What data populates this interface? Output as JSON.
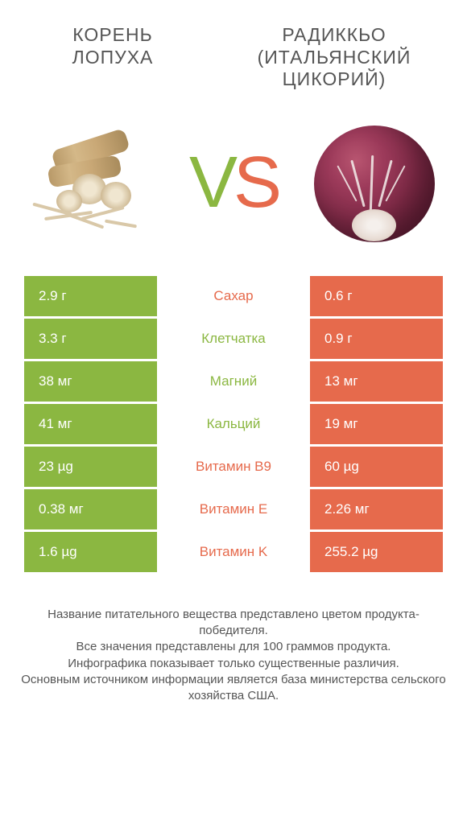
{
  "titles": {
    "left": "КОРЕНЬ ЛОПУХА",
    "right": "РАДИККЬО (ИТАЛЬЯНСКИЙ ЦИКОРИЙ)"
  },
  "vs": {
    "v": "V",
    "s": "S"
  },
  "colors": {
    "green": "#8bb741",
    "orange": "#e66a4c",
    "text": "#555555",
    "white": "#ffffff"
  },
  "rows": [
    {
      "left": "2.9 г",
      "mid": "Сахар",
      "right": "0.6 г",
      "mid_color": "#e66a4c"
    },
    {
      "left": "3.3 г",
      "mid": "Клетчатка",
      "right": "0.9 г",
      "mid_color": "#8bb741"
    },
    {
      "left": "38 мг",
      "mid": "Магний",
      "right": "13 мг",
      "mid_color": "#8bb741"
    },
    {
      "left": "41 мг",
      "mid": "Кальций",
      "right": "19 мг",
      "mid_color": "#8bb741"
    },
    {
      "left": "23 µg",
      "mid": "Витамин B9",
      "right": "60 µg",
      "mid_color": "#e66a4c"
    },
    {
      "left": "0.38 мг",
      "mid": "Витамин E",
      "right": "2.26 мг",
      "mid_color": "#e66a4c"
    },
    {
      "left": "1.6 µg",
      "mid": "Витамин K",
      "right": "255.2 µg",
      "mid_color": "#e66a4c"
    }
  ],
  "footer": {
    "line1": "Название питательного вещества представлено цветом продукта-победителя.",
    "line2": "Все значения представлены для 100 граммов продукта.",
    "line3": "Инфографика показывает только существенные различия.",
    "line4": "Основным источником информации является база министерства сельского хозяйства США."
  }
}
